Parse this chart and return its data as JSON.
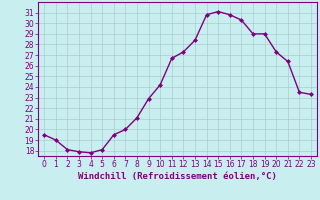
{
  "x": [
    0,
    1,
    2,
    3,
    4,
    5,
    6,
    7,
    8,
    9,
    10,
    11,
    12,
    13,
    14,
    15,
    16,
    17,
    18,
    19,
    20,
    21,
    22,
    23
  ],
  "y": [
    19.5,
    19.0,
    18.1,
    17.9,
    17.8,
    18.1,
    19.5,
    20.0,
    21.1,
    22.9,
    24.2,
    26.7,
    27.3,
    28.4,
    30.8,
    31.1,
    30.8,
    30.3,
    29.0,
    29.0,
    27.3,
    26.4,
    23.5,
    23.3
  ],
  "line_color": "#800080",
  "marker": "D",
  "marker_size": 2,
  "bg_color": "#c8eef0",
  "grid_color": "#aacccc",
  "xlabel": "Windchill (Refroidissement éolien,°C)",
  "ylim": [
    17.5,
    32
  ],
  "xlim": [
    -0.5,
    23.5
  ],
  "yticks": [
    18,
    19,
    20,
    21,
    22,
    23,
    24,
    25,
    26,
    27,
    28,
    29,
    30,
    31
  ],
  "xticks": [
    0,
    1,
    2,
    3,
    4,
    5,
    6,
    7,
    8,
    9,
    10,
    11,
    12,
    13,
    14,
    15,
    16,
    17,
    18,
    19,
    20,
    21,
    22,
    23
  ],
  "tick_fontsize": 5.5,
  "xlabel_fontsize": 6.5,
  "line_width": 1.0
}
